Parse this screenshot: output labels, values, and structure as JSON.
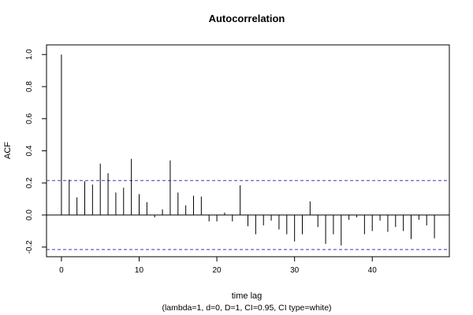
{
  "chart_data": {
    "type": "bar",
    "title": "Autocorrelation",
    "xlabel": "time lag",
    "subtitle": "(lambda=1, d=0, D=1, CI=0.95, CI type=white)",
    "ylabel": "ACF",
    "xlim": [
      -1.92,
      49.92
    ],
    "ylim": [
      -0.26,
      1.06
    ],
    "x_ticks": [
      0,
      10,
      20,
      30,
      40
    ],
    "y_ticks": [
      -0.2,
      0.0,
      0.2,
      0.4,
      0.6,
      0.8,
      1.0
    ],
    "y_tick_labels": [
      "-0.2",
      "0.0",
      "0.2",
      "0.4",
      "0.6",
      "0.8",
      "1.0"
    ],
    "x_tick_labels": [
      "0",
      "10",
      "20",
      "30",
      "40"
    ],
    "confidence_interval": [
      -0.215,
      0.215
    ],
    "ci_color": "#3b3bb3",
    "lags": [
      0,
      1,
      2,
      3,
      4,
      5,
      6,
      7,
      8,
      9,
      10,
      11,
      12,
      13,
      14,
      15,
      16,
      17,
      18,
      19,
      20,
      21,
      22,
      23,
      24,
      25,
      26,
      27,
      28,
      29,
      30,
      31,
      32,
      33,
      34,
      35,
      36,
      37,
      38,
      39,
      40,
      41,
      42,
      43,
      44,
      45,
      46,
      47,
      48
    ],
    "values": [
      1.0,
      0.22,
      0.11,
      0.21,
      0.19,
      0.32,
      0.26,
      0.14,
      0.17,
      0.35,
      0.13,
      0.08,
      -0.015,
      0.035,
      0.34,
      0.14,
      0.06,
      0.12,
      0.115,
      -0.04,
      -0.04,
      0.015,
      -0.04,
      0.185,
      -0.07,
      -0.12,
      -0.065,
      -0.035,
      -0.09,
      -0.12,
      -0.165,
      -0.12,
      0.085,
      -0.075,
      -0.18,
      -0.12,
      -0.19,
      -0.03,
      -0.015,
      -0.12,
      -0.1,
      -0.035,
      -0.105,
      -0.075,
      -0.1,
      -0.15,
      -0.03,
      -0.065,
      -0.145
    ]
  }
}
